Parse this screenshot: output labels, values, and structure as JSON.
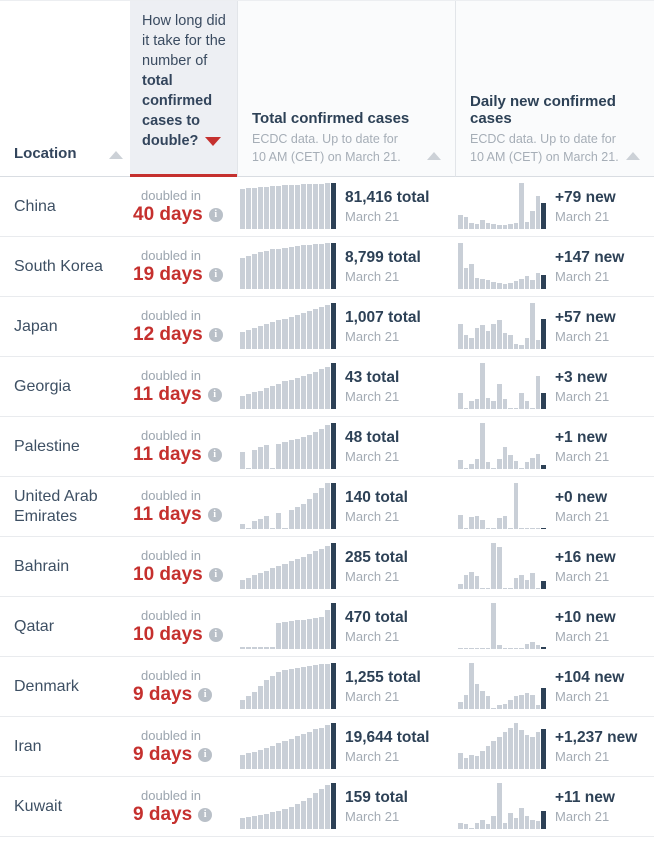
{
  "header": {
    "location": {
      "label": "Location"
    },
    "doubling": {
      "question_prefix": "How long did it take for the number of ",
      "question_bold": "total confirmed cases to double?"
    },
    "total": {
      "title": "Total confirmed cases",
      "subtitle": "ECDC data. Up to date for 10 AM (CET) on March 21."
    },
    "daily": {
      "title": "Daily new confirmed cases",
      "subtitle": "ECDC data. Up to date for 10 AM (CET) on March 21."
    }
  },
  "labels": {
    "doubled_in": "doubled in",
    "date": "March 21"
  },
  "colors": {
    "accent_red": "#c5302e",
    "navy_text": "#2d4156",
    "bar_gray": "#c9cfd7",
    "muted_gray": "#9ba4ae",
    "doubling_header_bg": "#edeff3"
  },
  "rows": [
    {
      "location": "China",
      "days": "40 days",
      "total": "81,416 total",
      "new": "+79 new",
      "total_spark": [
        88,
        89,
        90,
        91,
        92,
        93,
        94,
        95,
        95,
        96,
        97,
        97,
        98,
        98,
        99,
        100
      ],
      "daily_spark": [
        30,
        27,
        12,
        10,
        20,
        12,
        10,
        9,
        8,
        10,
        12,
        100,
        15,
        40,
        72,
        57
      ]
    },
    {
      "location": "South Korea",
      "days": "19 days",
      "total": "8,799 total",
      "new": "+147 new",
      "total_spark": [
        68,
        72,
        76,
        80,
        83,
        86,
        88,
        90,
        92,
        93,
        95,
        96,
        97,
        98,
        99,
        100
      ],
      "daily_spark": [
        100,
        45,
        55,
        25,
        22,
        20,
        15,
        12,
        10,
        12,
        18,
        22,
        28,
        20,
        35,
        30
      ]
    },
    {
      "location": "Japan",
      "days": "12 days",
      "total": "1,007 total",
      "new": "+57 new",
      "total_spark": [
        38,
        42,
        46,
        50,
        54,
        58,
        62,
        66,
        70,
        74,
        78,
        83,
        88,
        92,
        96,
        100
      ],
      "daily_spark": [
        55,
        30,
        25,
        45,
        52,
        40,
        55,
        62,
        35,
        30,
        10,
        8,
        25,
        100,
        20,
        65
      ]
    },
    {
      "location": "Georgia",
      "days": "11 days",
      "total": "43 total",
      "new": "+3 new",
      "total_spark": [
        28,
        32,
        36,
        40,
        45,
        50,
        55,
        60,
        64,
        68,
        72,
        76,
        81,
        86,
        92,
        100
      ],
      "daily_spark": [
        35,
        2,
        18,
        22,
        100,
        25,
        18,
        55,
        22,
        2,
        2,
        35,
        18,
        2,
        72,
        35
      ]
    },
    {
      "location": "Palestine",
      "days": "11 days",
      "total": "48 total",
      "new": "+1 new",
      "total_spark": [
        38,
        2,
        42,
        48,
        52,
        2,
        55,
        58,
        62,
        66,
        70,
        74,
        80,
        88,
        95,
        100
      ],
      "daily_spark": [
        20,
        2,
        10,
        22,
        100,
        15,
        2,
        22,
        48,
        30,
        18,
        2,
        15,
        25,
        32,
        8
      ]
    },
    {
      "location": "United Arab Emirates",
      "days": "11 days",
      "total": "140 total",
      "new": "+0 new",
      "total_spark": [
        10,
        2,
        18,
        22,
        28,
        2,
        35,
        2,
        42,
        48,
        55,
        65,
        78,
        90,
        100,
        100
      ],
      "daily_spark": [
        30,
        2,
        26,
        28,
        20,
        2,
        2,
        24,
        28,
        2,
        100,
        2,
        2,
        2,
        2,
        0
      ]
    },
    {
      "location": "Bahrain",
      "days": "10 days",
      "total": "285 total",
      "new": "+16 new",
      "total_spark": [
        20,
        25,
        30,
        35,
        40,
        45,
        50,
        55,
        60,
        65,
        70,
        76,
        82,
        88,
        94,
        100
      ],
      "daily_spark": [
        10,
        30,
        36,
        28,
        2,
        2,
        100,
        92,
        2,
        2,
        25,
        30,
        20,
        34,
        2,
        18
      ]
    },
    {
      "location": "Qatar",
      "days": "10 days",
      "total": "470 total",
      "new": "+10 new",
      "total_spark": [
        4,
        4,
        4,
        5,
        5,
        5,
        56,
        58,
        60,
        62,
        64,
        66,
        68,
        70,
        85,
        100
      ],
      "daily_spark": [
        2,
        2,
        2,
        3,
        2,
        3,
        100,
        8,
        3,
        3,
        3,
        3,
        10,
        15,
        8,
        4
      ]
    },
    {
      "location": "Denmark",
      "days": "9 days",
      "total": "1,255 total",
      "new": "+104 new",
      "total_spark": [
        20,
        28,
        38,
        50,
        62,
        72,
        80,
        85,
        88,
        90,
        92,
        94,
        96,
        97,
        98,
        100
      ],
      "daily_spark": [
        15,
        30,
        100,
        55,
        40,
        28,
        2,
        8,
        10,
        20,
        28,
        30,
        35,
        30,
        8,
        45
      ]
    },
    {
      "location": "Iran",
      "days": "9 days",
      "total": "19,644 total",
      "new": "+1,237 new",
      "total_spark": [
        30,
        34,
        38,
        42,
        46,
        51,
        56,
        61,
        66,
        71,
        76,
        81,
        86,
        90,
        95,
        100
      ],
      "daily_spark": [
        35,
        25,
        30,
        28,
        40,
        50,
        60,
        70,
        80,
        90,
        100,
        85,
        75,
        70,
        80,
        88
      ]
    },
    {
      "location": "Kuwait",
      "days": "9 days",
      "total": "159 total",
      "new": "+11 new",
      "total_spark": [
        25,
        27,
        29,
        31,
        33,
        36,
        40,
        44,
        48,
        54,
        60,
        68,
        78,
        88,
        95,
        100
      ],
      "daily_spark": [
        12,
        10,
        2,
        14,
        20,
        10,
        28,
        100,
        12,
        35,
        25,
        45,
        28,
        20,
        18,
        40
      ]
    }
  ]
}
